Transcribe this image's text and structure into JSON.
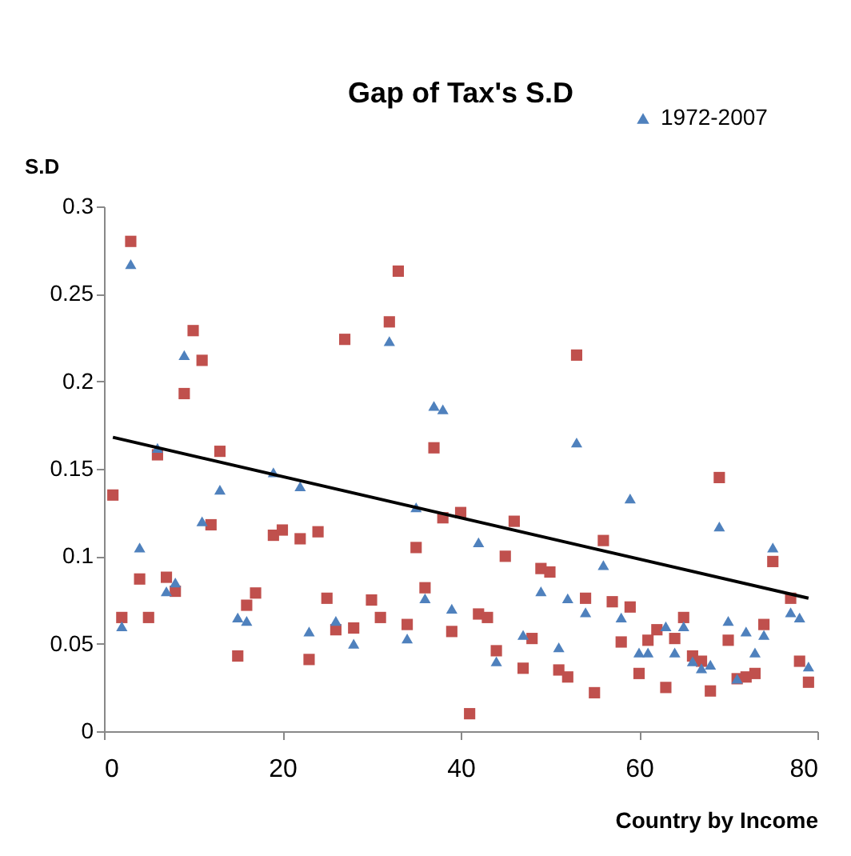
{
  "chart_data": {
    "type": "scatter",
    "title": "Gap of Tax's S.D",
    "xlabel": "Country by Income",
    "ylabel": "S.D",
    "xlim": [
      0,
      80
    ],
    "xticks": [
      0,
      20,
      40,
      60,
      80
    ],
    "ylim": [
      0,
      0.3
    ],
    "yticks": [
      0,
      0.05,
      0.1,
      0.15,
      0.2,
      0.25,
      0.3
    ],
    "grid": false,
    "legend": "top right",
    "series": [
      {
        "name": "1972-2007",
        "type": "scatter",
        "marker": "triangle",
        "color": "#4f81bd",
        "x": [
          2,
          3,
          4,
          6,
          7,
          8,
          9,
          11,
          13,
          15,
          16,
          19,
          22,
          23,
          26,
          28,
          32,
          34,
          35,
          36,
          37,
          38,
          39,
          42,
          44,
          47,
          49,
          51,
          52,
          53,
          54,
          56,
          58,
          59,
          60,
          61,
          63,
          64,
          65,
          66,
          67,
          68,
          69,
          70,
          71,
          72,
          73,
          74,
          75,
          77,
          78,
          79
        ],
        "values": [
          0.06,
          0.267,
          0.105,
          0.162,
          0.08,
          0.085,
          0.215,
          0.12,
          0.138,
          0.065,
          0.063,
          0.148,
          0.14,
          0.057,
          0.063,
          0.05,
          0.223,
          0.053,
          0.128,
          0.076,
          0.186,
          0.184,
          0.07,
          0.108,
          0.04,
          0.055,
          0.08,
          0.048,
          0.076,
          0.165,
          0.068,
          0.095,
          0.065,
          0.133,
          0.045,
          0.045,
          0.06,
          0.045,
          0.06,
          0.04,
          0.036,
          0.038,
          0.117,
          0.063,
          0.03,
          0.057,
          0.045,
          0.055,
          0.105,
          0.068,
          0.065,
          0.037
        ]
      },
      {
        "type": "scatter",
        "marker": "square",
        "color": "#c0504d",
        "x": [
          1,
          2,
          3,
          4,
          5,
          6,
          7,
          8,
          9,
          10,
          11,
          12,
          13,
          15,
          16,
          17,
          19,
          20,
          22,
          23,
          24,
          25,
          26,
          27,
          28,
          30,
          31,
          32,
          33,
          34,
          35,
          36,
          37,
          38,
          39,
          40,
          41,
          42,
          43,
          44,
          45,
          46,
          47,
          48,
          49,
          50,
          51,
          52,
          53,
          54,
          55,
          56,
          57,
          58,
          59,
          60,
          61,
          62,
          63,
          64,
          65,
          66,
          67,
          68,
          69,
          70,
          71,
          72,
          73,
          74,
          75,
          77,
          78,
          79
        ],
        "values": [
          0.135,
          0.065,
          0.28,
          0.087,
          0.065,
          0.158,
          0.088,
          0.08,
          0.193,
          0.229,
          0.212,
          0.118,
          0.16,
          0.043,
          0.072,
          0.079,
          0.112,
          0.115,
          0.11,
          0.041,
          0.114,
          0.076,
          0.058,
          0.224,
          0.059,
          0.075,
          0.065,
          0.234,
          0.263,
          0.061,
          0.105,
          0.082,
          0.162,
          0.122,
          0.057,
          0.125,
          0.01,
          0.067,
          0.065,
          0.046,
          0.1,
          0.12,
          0.036,
          0.053,
          0.093,
          0.091,
          0.035,
          0.031,
          0.215,
          0.076,
          0.022,
          0.109,
          0.074,
          0.051,
          0.071,
          0.033,
          0.052,
          0.058,
          0.025,
          0.053,
          0.065,
          0.043,
          0.04,
          0.023,
          0.145,
          0.052,
          0.03,
          0.031,
          0.033,
          0.061,
          0.097,
          0.076,
          0.04,
          0.028
        ]
      },
      {
        "type": "line",
        "marker": "none",
        "line_style": "solid",
        "color": "#000000",
        "x": [
          1,
          79
        ],
        "values": [
          0.168,
          0.076
        ]
      }
    ]
  }
}
